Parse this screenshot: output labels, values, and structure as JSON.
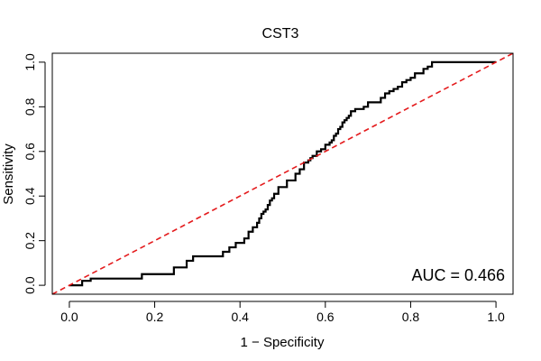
{
  "chart_data": {
    "type": "line",
    "title": "CST3",
    "xlabel": "1 − Specificity",
    "ylabel": "Sensitivity",
    "xlim": [
      -0.04,
      1.04
    ],
    "ylim": [
      -0.04,
      1.04
    ],
    "xticks": [
      0.0,
      0.2,
      0.4,
      0.6,
      0.8,
      1.0
    ],
    "xtick_labels": [
      "0.0",
      "0.2",
      "0.4",
      "0.6",
      "0.8",
      "1.0"
    ],
    "yticks": [
      0.0,
      0.2,
      0.4,
      0.6,
      0.8,
      1.0
    ],
    "ytick_labels": [
      "0.0",
      "0.2",
      "0.4",
      "0.6",
      "0.8",
      "1.0"
    ],
    "grid": false,
    "annotation": "AUC = 0.466",
    "series": [
      {
        "color": "#000000",
        "style": "solid-step",
        "x": [
          0.0,
          0.03,
          0.03,
          0.05,
          0.05,
          0.17,
          0.17,
          0.245,
          0.245,
          0.275,
          0.275,
          0.29,
          0.29,
          0.36,
          0.36,
          0.375,
          0.375,
          0.39,
          0.39,
          0.41,
          0.41,
          0.42,
          0.42,
          0.43,
          0.43,
          0.44,
          0.44,
          0.445,
          0.445,
          0.45,
          0.45,
          0.455,
          0.455,
          0.46,
          0.46,
          0.465,
          0.465,
          0.47,
          0.47,
          0.475,
          0.475,
          0.48,
          0.48,
          0.49,
          0.49,
          0.5,
          0.5,
          0.51,
          0.51,
          0.53,
          0.53,
          0.54,
          0.54,
          0.55,
          0.55,
          0.56,
          0.56,
          0.565,
          0.565,
          0.57,
          0.57,
          0.58,
          0.58,
          0.59,
          0.59,
          0.6,
          0.6,
          0.61,
          0.61,
          0.615,
          0.615,
          0.62,
          0.62,
          0.625,
          0.625,
          0.63,
          0.63,
          0.635,
          0.635,
          0.64,
          0.64,
          0.645,
          0.645,
          0.65,
          0.65,
          0.655,
          0.655,
          0.66,
          0.66,
          0.67,
          0.67,
          0.68,
          0.68,
          0.69,
          0.69,
          0.7,
          0.7,
          0.73,
          0.73,
          0.74,
          0.74,
          0.75,
          0.75,
          0.76,
          0.76,
          0.77,
          0.77,
          0.78,
          0.78,
          0.79,
          0.79,
          0.8,
          0.8,
          0.81,
          0.81,
          0.83,
          0.83,
          0.84,
          0.84,
          0.85,
          0.85,
          1.0
        ],
        "y": [
          0.0,
          0.0,
          0.02,
          0.02,
          0.03,
          0.03,
          0.05,
          0.05,
          0.08,
          0.08,
          0.11,
          0.11,
          0.13,
          0.13,
          0.15,
          0.15,
          0.17,
          0.17,
          0.19,
          0.19,
          0.21,
          0.21,
          0.24,
          0.24,
          0.26,
          0.26,
          0.28,
          0.28,
          0.3,
          0.3,
          0.32,
          0.32,
          0.33,
          0.33,
          0.34,
          0.34,
          0.36,
          0.36,
          0.38,
          0.38,
          0.39,
          0.39,
          0.41,
          0.41,
          0.44,
          0.44,
          0.44,
          0.44,
          0.47,
          0.47,
          0.5,
          0.5,
          0.52,
          0.52,
          0.55,
          0.55,
          0.56,
          0.56,
          0.57,
          0.57,
          0.58,
          0.58,
          0.6,
          0.6,
          0.61,
          0.61,
          0.63,
          0.63,
          0.64,
          0.64,
          0.65,
          0.65,
          0.67,
          0.67,
          0.68,
          0.68,
          0.7,
          0.7,
          0.71,
          0.71,
          0.73,
          0.73,
          0.74,
          0.74,
          0.75,
          0.75,
          0.76,
          0.76,
          0.78,
          0.78,
          0.79,
          0.79,
          0.79,
          0.79,
          0.8,
          0.8,
          0.82,
          0.82,
          0.84,
          0.84,
          0.86,
          0.86,
          0.87,
          0.87,
          0.88,
          0.88,
          0.89,
          0.89,
          0.91,
          0.91,
          0.92,
          0.92,
          0.93,
          0.93,
          0.95,
          0.95,
          0.97,
          0.97,
          0.98,
          0.98,
          1.0,
          1.0
        ]
      },
      {
        "color": "#e41a1c",
        "style": "dashed",
        "x": [
          -0.04,
          1.04
        ],
        "y": [
          -0.04,
          1.04
        ]
      }
    ]
  }
}
